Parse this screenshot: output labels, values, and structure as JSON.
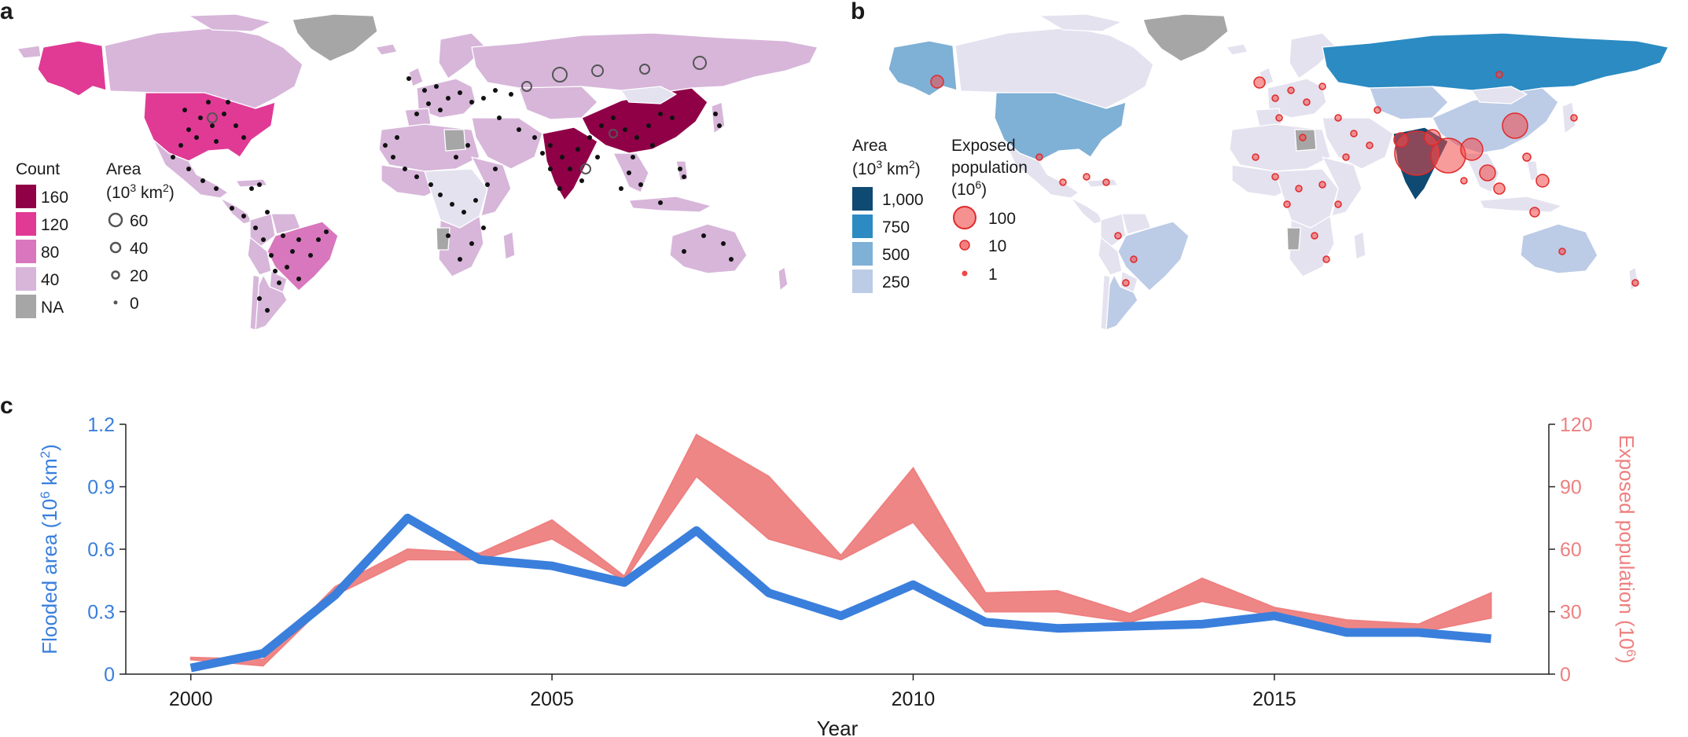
{
  "panels": {
    "a": {
      "letter": "a",
      "count_legend": {
        "title": "Count",
        "items": [
          {
            "label": "160",
            "color": "#8f0047"
          },
          {
            "label": "120",
            "color": "#e03a95"
          },
          {
            "label": "80",
            "color": "#d877bd"
          },
          {
            "label": "40",
            "color": "#d7b6da"
          },
          {
            "label": "NA",
            "color": "#a6a6a6"
          }
        ]
      },
      "area_legend": {
        "title_line1": "Area",
        "title_base": "(10",
        "title_sup": "3",
        "title_unit": " km",
        "title_sup2": "2",
        "title_end": ")",
        "items": [
          "60",
          "40",
          "20",
          "0"
        ]
      }
    },
    "b": {
      "letter": "b",
      "area_legend": {
        "title_line1": "Area",
        "title_base": "(10",
        "title_sup": "3",
        "title_unit": " km",
        "title_sup2": "2",
        "title_end": ")",
        "items": [
          {
            "label": "1,000",
            "color": "#0e4a72"
          },
          {
            "label": "750",
            "color": "#2b8bc2"
          },
          {
            "label": "500",
            "color": "#7fb0d6"
          },
          {
            "label": "250",
            "color": "#bccbe6"
          }
        ]
      },
      "population_legend": {
        "title_line1": "Exposed",
        "title_line2": "population",
        "title_base": "(10",
        "title_sup": "6",
        "title_end": ")",
        "items": [
          "100",
          "10",
          "1"
        ]
      }
    },
    "c": {
      "letter": "c"
    }
  },
  "colors": {
    "count_top": "#8f0047",
    "count_mid": "#e03a95",
    "count_low": "#d877bd",
    "count_min": "#d7b6da",
    "na": "#a6a6a6",
    "area_1000": "#0e4a72",
    "area_750": "#2b8bc2",
    "area_500": "#7fb0d6",
    "area_250": "#bccbe6",
    "base_land": "#e4e2ef",
    "flood_line": "#3a7fdc",
    "pop_band": "#ee8080",
    "pop_bubble": "#f04848"
  },
  "chart_data": {
    "type": "line",
    "x": [
      2000,
      2001,
      2002,
      2003,
      2004,
      2005,
      2006,
      2007,
      2008,
      2009,
      2010,
      2011,
      2012,
      2013,
      2014,
      2015,
      2016,
      2017,
      2018
    ],
    "series": [
      {
        "axis": "left",
        "values": [
          0.03,
          0.1,
          0.38,
          0.75,
          0.55,
          0.52,
          0.44,
          0.69,
          0.39,
          0.28,
          0.43,
          0.25,
          0.22,
          0.23,
          0.24,
          0.28,
          0.2,
          0.2,
          0.17
        ]
      },
      {
        "axis": "right",
        "type": "band",
        "low": [
          7,
          4,
          38,
          55,
          55,
          65,
          45,
          95,
          65,
          55,
          73,
          30,
          30,
          25,
          35,
          28,
          22,
          20,
          27
        ],
        "high": [
          8,
          7,
          42,
          60,
          58,
          74,
          47,
          115,
          95,
          57,
          99,
          39,
          40,
          29,
          46,
          32,
          26,
          24,
          39
        ]
      }
    ],
    "xlabel": "Year",
    "ylabel_left": {
      "base": "Flooded area (10",
      "sup": "6",
      "mid": " km",
      "sup2": "2",
      "end": ")"
    },
    "ylabel_right": {
      "base": "Exposed population (10",
      "sup": "6",
      "end": ")"
    },
    "xticks": [
      "2000",
      "2005",
      "2010",
      "2015"
    ],
    "xlim": [
      1999.1,
      2018.8
    ],
    "yticks_left": [
      "0",
      "0.3",
      "0.6",
      "0.9",
      "1.2"
    ],
    "ylim_left": [
      0,
      1.2
    ],
    "yticks_right": [
      "0",
      "30",
      "60",
      "90",
      "120"
    ],
    "ylim_right": [
      0,
      120
    ],
    "grid": false
  }
}
